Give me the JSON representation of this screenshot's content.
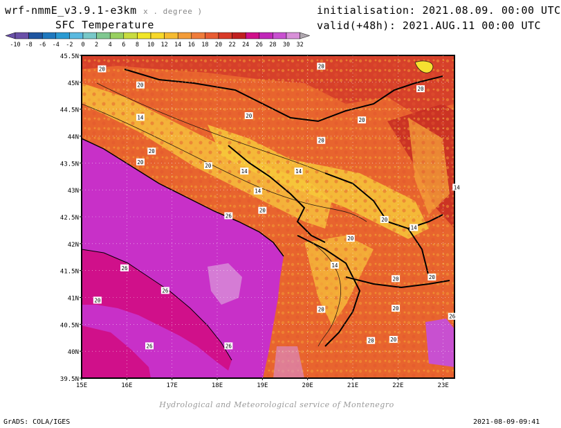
{
  "header": {
    "model": "wrf-nmmE_v3.9.1-e3km",
    "model_sub": "x . degree )",
    "variable": "SFC Temperature",
    "init": "initialisation: 2021.08.09. 00:00 UTC",
    "valid": "valid(+48h): 2021.AUG.11 00:00 UTC"
  },
  "legend": {
    "ticks": [
      "-10",
      "-8",
      "-6",
      "-4",
      "-2",
      "0",
      "2",
      "4",
      "6",
      "8",
      "10",
      "12",
      "14",
      "16",
      "18",
      "20",
      "22",
      "24",
      "26",
      "28",
      "30",
      "32"
    ],
    "colors": [
      "#6a50a8",
      "#1f55a0",
      "#1e78be",
      "#2a9ad2",
      "#5ab9e0",
      "#78c8c8",
      "#80c890",
      "#98d060",
      "#c8dc40",
      "#f0e628",
      "#f7d82a",
      "#f6bb30",
      "#f39c38",
      "#ef7c3a",
      "#e85c32",
      "#d83a28",
      "#c02020",
      "#d0108a",
      "#c028b8",
      "#c850d0",
      "#d890d8"
    ]
  },
  "map": {
    "lat_labels": [
      "45.5N",
      "45N",
      "44.5N",
      "44N",
      "43.5N",
      "43N",
      "42.5N",
      "42N",
      "41.5N",
      "41N",
      "40.5N",
      "40N",
      "39.5N"
    ],
    "lon_labels": [
      "15E",
      "16E",
      "17E",
      "18E",
      "19E",
      "20E",
      "21E",
      "22E",
      "23E"
    ],
    "contour_labels": [
      {
        "t": "20",
        "lon": 15.45,
        "lat": 45.25
      },
      {
        "t": "20",
        "lon": 16.3,
        "lat": 44.95
      },
      {
        "t": "20",
        "lon": 20.3,
        "lat": 45.3
      },
      {
        "t": "20",
        "lon": 22.5,
        "lat": 44.88
      },
      {
        "t": "14",
        "lon": 16.3,
        "lat": 44.35
      },
      {
        "t": "20",
        "lon": 18.7,
        "lat": 44.38
      },
      {
        "t": "20",
        "lon": 21.2,
        "lat": 44.3
      },
      {
        "t": "20",
        "lon": 20.3,
        "lat": 43.92
      },
      {
        "t": "20",
        "lon": 16.55,
        "lat": 43.72
      },
      {
        "t": "20",
        "lon": 16.3,
        "lat": 43.52
      },
      {
        "t": "20",
        "lon": 17.8,
        "lat": 43.45
      },
      {
        "t": "14",
        "lon": 18.6,
        "lat": 43.35
      },
      {
        "t": "14",
        "lon": 19.8,
        "lat": 43.35
      },
      {
        "t": "14",
        "lon": 23.3,
        "lat": 43.05
      },
      {
        "t": "14",
        "lon": 18.9,
        "lat": 42.98
      },
      {
        "t": "20",
        "lon": 19.0,
        "lat": 42.62
      },
      {
        "t": "26",
        "lon": 18.25,
        "lat": 42.52
      },
      {
        "t": "20",
        "lon": 21.7,
        "lat": 42.45
      },
      {
        "t": "14",
        "lon": 22.35,
        "lat": 42.3
      },
      {
        "t": "20",
        "lon": 20.95,
        "lat": 42.1
      },
      {
        "t": "14",
        "lon": 20.6,
        "lat": 41.6
      },
      {
        "t": "26",
        "lon": 15.95,
        "lat": 41.55
      },
      {
        "t": "20",
        "lon": 21.95,
        "lat": 41.35
      },
      {
        "t": "20",
        "lon": 22.75,
        "lat": 41.38
      },
      {
        "t": "26",
        "lon": 16.85,
        "lat": 41.13
      },
      {
        "t": "20",
        "lon": 15.35,
        "lat": 40.95
      },
      {
        "t": "20",
        "lon": 21.95,
        "lat": 40.8
      },
      {
        "t": "20",
        "lon": 20.3,
        "lat": 40.78
      },
      {
        "t": "26",
        "lon": 23.2,
        "lat": 40.65
      },
      {
        "t": "20",
        "lon": 21.4,
        "lat": 40.2
      },
      {
        "t": "20",
        "lon": 21.9,
        "lat": 40.22
      },
      {
        "t": "26",
        "lon": 16.5,
        "lat": 40.1
      },
      {
        "t": "26",
        "lon": 18.25,
        "lat": 40.1
      }
    ]
  },
  "footer": {
    "subtitle": "Hydrological and Meteorological service of Montenegro",
    "left": "GrADS: COLA/IGES",
    "right": "2021-08-09-09:41"
  }
}
